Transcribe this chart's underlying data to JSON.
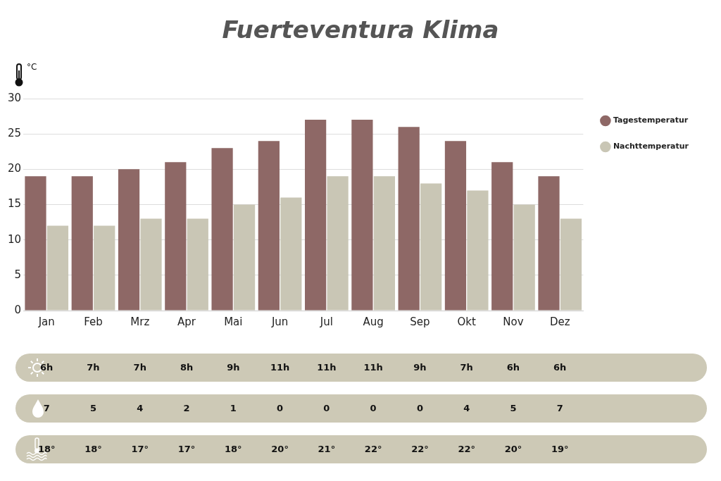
{
  "chart_data": [
    {
      "type": "bar",
      "title": "Fuerteventura Klima",
      "ylabel": "°C",
      "categories": [
        "Jan",
        "Feb",
        "Mrz",
        "Apr",
        "Mai",
        "Jun",
        "Jul",
        "Aug",
        "Sep",
        "Okt",
        "Nov",
        "Dez"
      ],
      "series": [
        {
          "name": "Tagestemperatur",
          "color": "#8e6866",
          "values": [
            19,
            19,
            20,
            21,
            23,
            24,
            27,
            27,
            26,
            24,
            21,
            19
          ]
        },
        {
          "name": "Nachttemperatur",
          "color": "#c9c6b5",
          "values": [
            12,
            12,
            13,
            13,
            15,
            16,
            19,
            19,
            18,
            17,
            15,
            13
          ]
        }
      ],
      "ylim": [
        0,
        30
      ],
      "yticks": [
        0,
        5,
        10,
        15,
        20,
        25,
        30
      ],
      "grid": "y",
      "legend": "top right"
    },
    {
      "type": "other",
      "annotations": [
        "6h",
        "7h",
        "7h",
        "8h",
        "9h",
        "11h",
        "11h",
        "11h",
        "9h",
        "7h",
        "6h",
        "6h",
        "7",
        "5",
        "4",
        "2",
        "1",
        "0",
        "0",
        "0",
        "0",
        "4",
        "5",
        "7",
        "18°",
        "18°",
        "17°",
        "17°",
        "18°",
        "20°",
        "21°",
        "22°",
        "22°",
        "22°",
        "20°",
        "19°"
      ]
    }
  ]
}
